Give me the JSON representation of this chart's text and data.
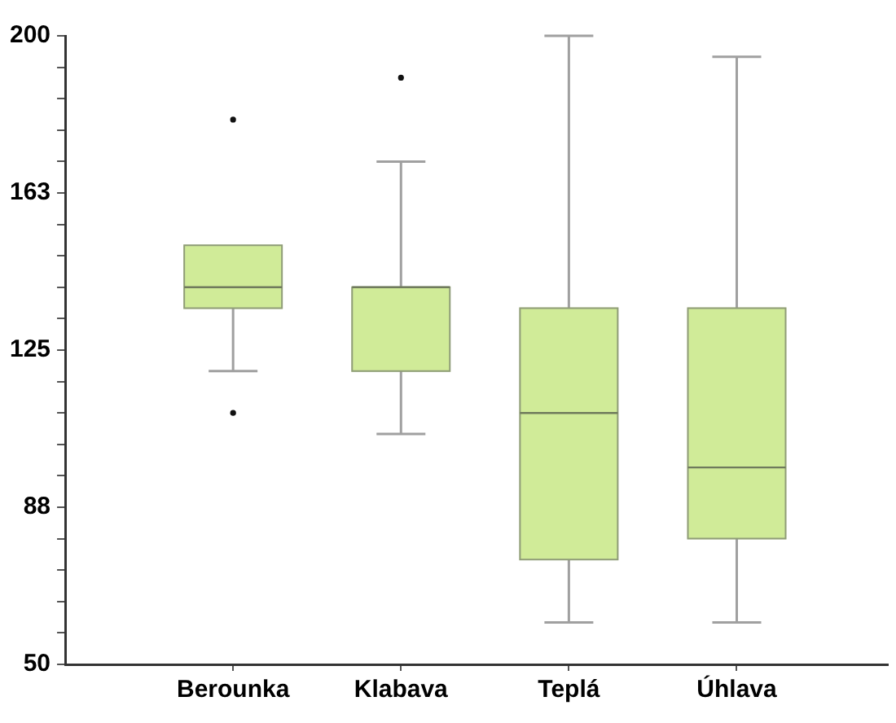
{
  "chart_data": {
    "type": "box",
    "categories": [
      "Berounka",
      "Klabava",
      "Teplá",
      "Úhlava"
    ],
    "color": "#d0eb98",
    "boxes": [
      {
        "low": 120,
        "q1": 135,
        "median": 140,
        "q3": 150,
        "high": 150,
        "outliers": [
          110,
          180
        ]
      },
      {
        "low": 105,
        "q1": 120,
        "median": 140,
        "q3": 140,
        "high": 170,
        "outliers": [
          190
        ]
      },
      {
        "low": 60,
        "q1": 75,
        "median": 110,
        "q3": 135,
        "high": 200
      },
      {
        "low": 60,
        "q1": 80,
        "median": 97,
        "q3": 135,
        "high": 195
      }
    ],
    "ylim": [
      50,
      200
    ],
    "yticks": [
      50,
      {
        "value": 57.5,
        "label": null
      },
      {
        "value": 65,
        "label": null
      },
      {
        "value": 72.5,
        "label": null
      },
      {
        "value": 80,
        "label": null
      },
      {
        "value": 87.5,
        "label": "88"
      },
      {
        "value": 95,
        "label": null
      },
      {
        "value": 102.5,
        "label": null
      },
      {
        "value": 110,
        "label": null
      },
      {
        "value": 117.5,
        "label": null
      },
      125,
      {
        "value": 132.5,
        "label": null
      },
      {
        "value": 140,
        "label": null
      },
      {
        "value": 147.5,
        "label": null
      },
      {
        "value": 155,
        "label": null
      },
      {
        "value": 162.5,
        "label": "163"
      },
      {
        "value": 170,
        "label": null
      },
      {
        "value": 177.5,
        "label": null
      },
      {
        "value": 185,
        "label": null
      },
      {
        "value": 192.5,
        "label": null
      },
      200
    ],
    "grid": false
  }
}
